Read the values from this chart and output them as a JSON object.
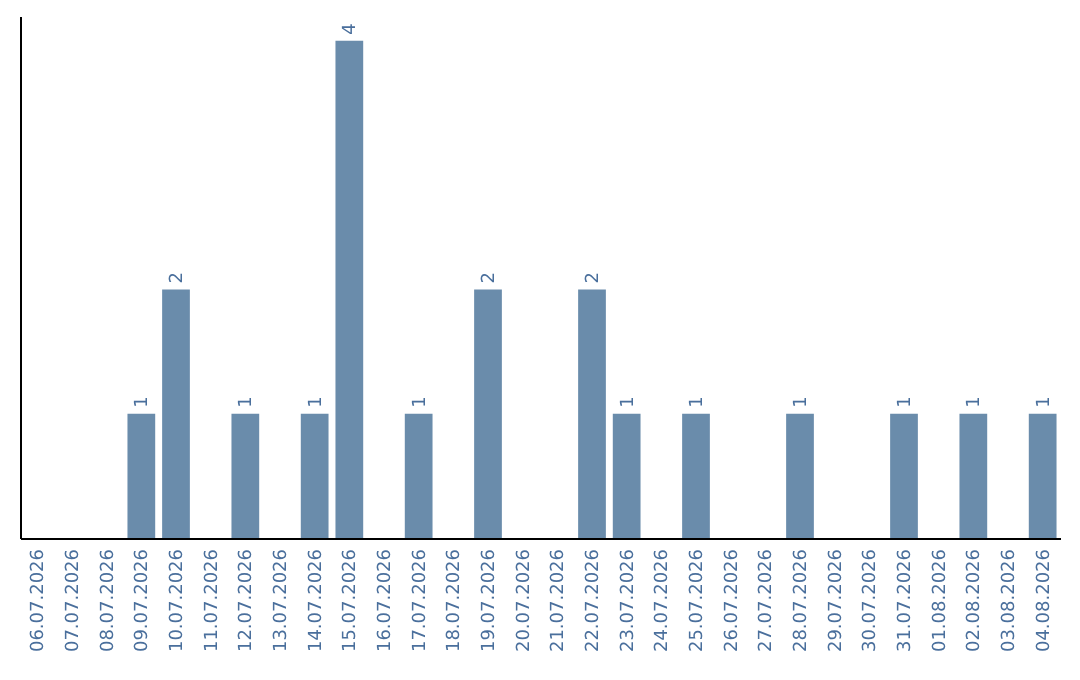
{
  "chart_data": {
    "type": "bar",
    "categories": [
      "06.07.2026",
      "07.07.2026",
      "08.07.2026",
      "09.07.2026",
      "10.07.2026",
      "11.07.2026",
      "12.07.2026",
      "13.07.2026",
      "14.07.2026",
      "15.07.2026",
      "16.07.2026",
      "17.07.2026",
      "18.07.2026",
      "19.07.2026",
      "20.07.2026",
      "21.07.2026",
      "22.07.2026",
      "23.07.2026",
      "24.07.2026",
      "25.07.2026",
      "26.07.2026",
      "27.07.2026",
      "28.07.2026",
      "29.07.2026",
      "30.07.2026",
      "31.07.2026",
      "01.08.2026",
      "02.08.2026",
      "03.08.2026",
      "04.08.2026"
    ],
    "values": [
      0,
      0,
      0,
      1,
      2,
      0,
      1,
      0,
      1,
      4,
      0,
      1,
      0,
      2,
      0,
      0,
      2,
      1,
      0,
      1,
      0,
      0,
      1,
      0,
      0,
      1,
      0,
      1,
      0,
      1
    ],
    "value_labels": [
      null,
      null,
      null,
      "1",
      "2",
      null,
      "1",
      null,
      "1",
      "4",
      null,
      "1",
      null,
      "2",
      null,
      null,
      "2",
      "1",
      null,
      "1",
      null,
      null,
      "1",
      null,
      null,
      "1",
      null,
      "1",
      null,
      "1"
    ],
    "color": "#6a8cab",
    "ylim": [
      0,
      4.2
    ],
    "tick_labels": "x"
  }
}
